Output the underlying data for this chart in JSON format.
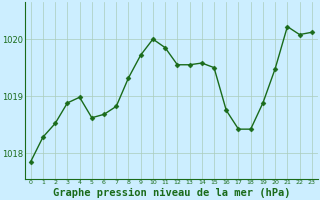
{
  "x": [
    0,
    1,
    2,
    3,
    4,
    5,
    6,
    7,
    8,
    9,
    10,
    11,
    12,
    13,
    14,
    15,
    16,
    17,
    18,
    19,
    20,
    21,
    22,
    23
  ],
  "y": [
    1017.85,
    1018.28,
    1018.52,
    1018.88,
    1018.98,
    1018.62,
    1018.68,
    1018.82,
    1019.32,
    1019.72,
    1020.0,
    1019.85,
    1019.55,
    1019.55,
    1019.58,
    1019.5,
    1018.75,
    1018.42,
    1018.42,
    1018.88,
    1019.48,
    1020.22,
    1020.08,
    1020.12
  ],
  "line_color": "#1a6b1a",
  "marker_color": "#1a6b1a",
  "bg_color": "#cceeff",
  "plot_bg_color": "#cceeff",
  "grid_color": "#aaccbb",
  "xlabel": "Graphe pression niveau de la mer (hPa)",
  "xlabel_fontsize": 7.5,
  "ylim_min": 1017.55,
  "ylim_max": 1020.65,
  "ytick_values": [
    1018,
    1019,
    1020
  ],
  "marker_size": 2.5,
  "line_width": 1.0,
  "fig_width": 3.2,
  "fig_height": 2.0,
  "dpi": 100
}
